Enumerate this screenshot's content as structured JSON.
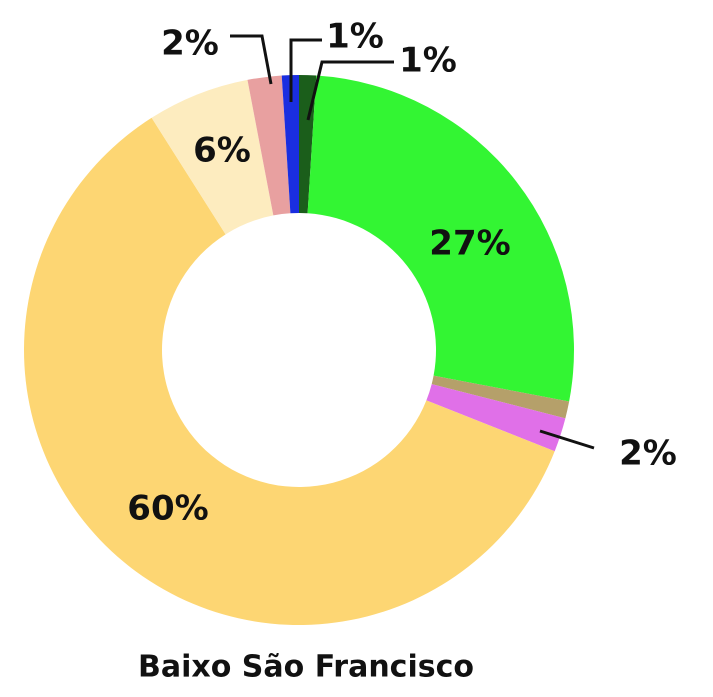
{
  "chart_data": {
    "type": "donut",
    "title": "Baixo São Francisco",
    "categories": [
      null,
      null,
      null,
      null,
      null,
      null,
      null,
      null
    ],
    "values": [
      1,
      27,
      1,
      2,
      60,
      6,
      2,
      1
    ],
    "value_labels": [
      "1%",
      "27%",
      null,
      "2%",
      "60%",
      "6%",
      "2%",
      "1%"
    ],
    "colors": [
      "#1b5e1b",
      "#33f533",
      "#b5a06a",
      "#e070e8",
      "#fdd673",
      "#fdecbf",
      "#e8a0a0",
      "#1a2ee0"
    ]
  }
}
